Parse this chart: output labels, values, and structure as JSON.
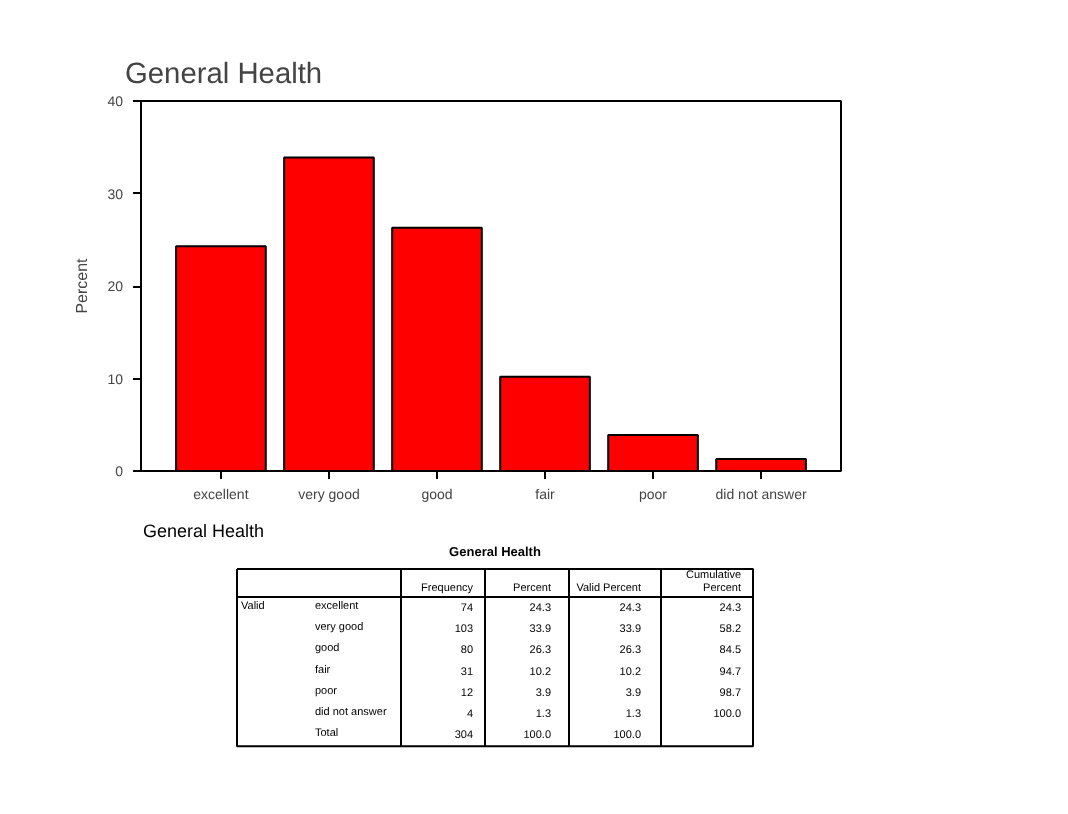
{
  "chart_data": {
    "type": "bar",
    "title": "General Health",
    "ylabel": "Percent",
    "categories": [
      "excellent",
      "very good",
      "good",
      "fair",
      "poor",
      "did not answer"
    ],
    "values": [
      24.3,
      33.9,
      26.3,
      10.2,
      3.9,
      1.3
    ],
    "color": "#ff0000",
    "ylim": [
      0,
      40
    ],
    "yticks": [
      0,
      10,
      20,
      30,
      40
    ],
    "grid": false,
    "annotations": [
      "General Health",
      "General Health",
      "\t\tFrequency\tPercent\tValid Percent\tCumulative\nPercent",
      "Valid\texcellent\t74\t24.3\t24.3\t24.3",
      "\tvery good\t103\t33.9\t33.9\t58.2",
      "\tgood\t80\t26.3\t26.3\t84.5",
      "\tfair\t31\t10.2\t10.2\t94.7",
      "\tpoor\t12\t3.9\t3.9\t98.7",
      "\tdid not answer\t4\t1.3\t1.3\t100.0",
      "\tTotal\t304\t100.0\t100.0\t"
    ]
  }
}
